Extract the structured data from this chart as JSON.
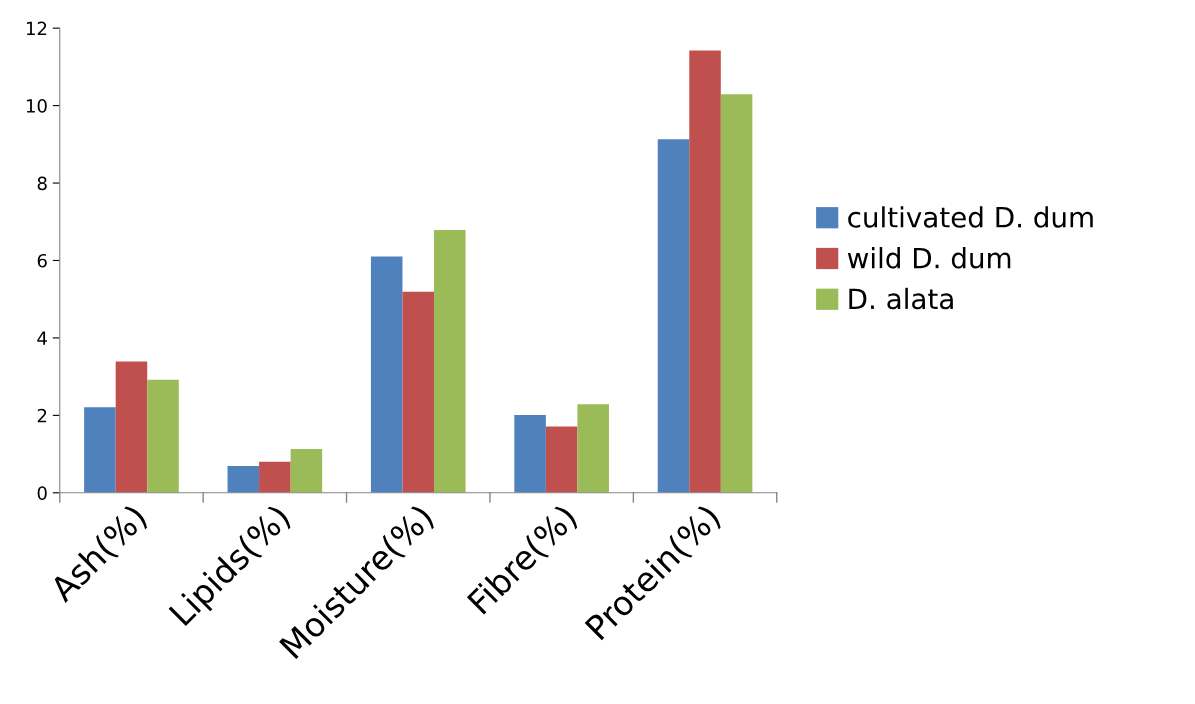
{
  "chart_data": {
    "type": "bar",
    "categories": [
      "Ash(%)",
      "Lipids(%)",
      "Moisture(%)",
      "Fibre(%)",
      "Protein(%)"
    ],
    "series": [
      {
        "name": "cultivated D. dum",
        "color": "#4f81bd",
        "values": [
          2.21,
          0.69,
          6.1,
          2.01,
          9.13
        ]
      },
      {
        "name": "wild D. dum",
        "color": "#c0504d",
        "values": [
          3.39,
          0.8,
          5.19,
          1.71,
          11.42
        ]
      },
      {
        "name": "D. alata",
        "color": "#9bbb59",
        "values": [
          2.92,
          1.13,
          6.79,
          2.29,
          10.29
        ]
      }
    ],
    "ylim": [
      0,
      12
    ],
    "yticks": [
      0,
      2,
      4,
      6,
      8,
      10,
      12
    ],
    "grid": false,
    "legend": "right"
  }
}
